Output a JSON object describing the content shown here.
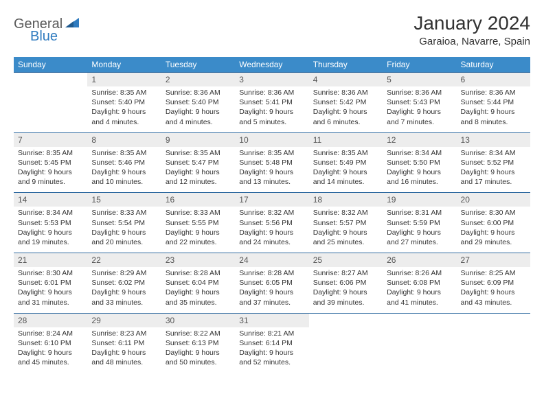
{
  "logo": {
    "part1": "General",
    "part2": "Blue"
  },
  "title": "January 2024",
  "location": "Garaioa, Navarre, Spain",
  "colors": {
    "header_bg": "#3b8bc9",
    "header_text": "#ffffff",
    "num_bg": "#ededed",
    "divider": "#2f6aa0",
    "text": "#333333",
    "logo_gray": "#5a5a5a",
    "logo_blue": "#2f7bbf"
  },
  "weekdays": [
    "Sunday",
    "Monday",
    "Tuesday",
    "Wednesday",
    "Thursday",
    "Friday",
    "Saturday"
  ],
  "weeks": [
    [
      null,
      {
        "n": "1",
        "sr": "8:35 AM",
        "ss": "5:40 PM",
        "dl": "9 hours and 4 minutes."
      },
      {
        "n": "2",
        "sr": "8:36 AM",
        "ss": "5:40 PM",
        "dl": "9 hours and 4 minutes."
      },
      {
        "n": "3",
        "sr": "8:36 AM",
        "ss": "5:41 PM",
        "dl": "9 hours and 5 minutes."
      },
      {
        "n": "4",
        "sr": "8:36 AM",
        "ss": "5:42 PM",
        "dl": "9 hours and 6 minutes."
      },
      {
        "n": "5",
        "sr": "8:36 AM",
        "ss": "5:43 PM",
        "dl": "9 hours and 7 minutes."
      },
      {
        "n": "6",
        "sr": "8:36 AM",
        "ss": "5:44 PM",
        "dl": "9 hours and 8 minutes."
      }
    ],
    [
      {
        "n": "7",
        "sr": "8:35 AM",
        "ss": "5:45 PM",
        "dl": "9 hours and 9 minutes."
      },
      {
        "n": "8",
        "sr": "8:35 AM",
        "ss": "5:46 PM",
        "dl": "9 hours and 10 minutes."
      },
      {
        "n": "9",
        "sr": "8:35 AM",
        "ss": "5:47 PM",
        "dl": "9 hours and 12 minutes."
      },
      {
        "n": "10",
        "sr": "8:35 AM",
        "ss": "5:48 PM",
        "dl": "9 hours and 13 minutes."
      },
      {
        "n": "11",
        "sr": "8:35 AM",
        "ss": "5:49 PM",
        "dl": "9 hours and 14 minutes."
      },
      {
        "n": "12",
        "sr": "8:34 AM",
        "ss": "5:50 PM",
        "dl": "9 hours and 16 minutes."
      },
      {
        "n": "13",
        "sr": "8:34 AM",
        "ss": "5:52 PM",
        "dl": "9 hours and 17 minutes."
      }
    ],
    [
      {
        "n": "14",
        "sr": "8:34 AM",
        "ss": "5:53 PM",
        "dl": "9 hours and 19 minutes."
      },
      {
        "n": "15",
        "sr": "8:33 AM",
        "ss": "5:54 PM",
        "dl": "9 hours and 20 minutes."
      },
      {
        "n": "16",
        "sr": "8:33 AM",
        "ss": "5:55 PM",
        "dl": "9 hours and 22 minutes."
      },
      {
        "n": "17",
        "sr": "8:32 AM",
        "ss": "5:56 PM",
        "dl": "9 hours and 24 minutes."
      },
      {
        "n": "18",
        "sr": "8:32 AM",
        "ss": "5:57 PM",
        "dl": "9 hours and 25 minutes."
      },
      {
        "n": "19",
        "sr": "8:31 AM",
        "ss": "5:59 PM",
        "dl": "9 hours and 27 minutes."
      },
      {
        "n": "20",
        "sr": "8:30 AM",
        "ss": "6:00 PM",
        "dl": "9 hours and 29 minutes."
      }
    ],
    [
      {
        "n": "21",
        "sr": "8:30 AM",
        "ss": "6:01 PM",
        "dl": "9 hours and 31 minutes."
      },
      {
        "n": "22",
        "sr": "8:29 AM",
        "ss": "6:02 PM",
        "dl": "9 hours and 33 minutes."
      },
      {
        "n": "23",
        "sr": "8:28 AM",
        "ss": "6:04 PM",
        "dl": "9 hours and 35 minutes."
      },
      {
        "n": "24",
        "sr": "8:28 AM",
        "ss": "6:05 PM",
        "dl": "9 hours and 37 minutes."
      },
      {
        "n": "25",
        "sr": "8:27 AM",
        "ss": "6:06 PM",
        "dl": "9 hours and 39 minutes."
      },
      {
        "n": "26",
        "sr": "8:26 AM",
        "ss": "6:08 PM",
        "dl": "9 hours and 41 minutes."
      },
      {
        "n": "27",
        "sr": "8:25 AM",
        "ss": "6:09 PM",
        "dl": "9 hours and 43 minutes."
      }
    ],
    [
      {
        "n": "28",
        "sr": "8:24 AM",
        "ss": "6:10 PM",
        "dl": "9 hours and 45 minutes."
      },
      {
        "n": "29",
        "sr": "8:23 AM",
        "ss": "6:11 PM",
        "dl": "9 hours and 48 minutes."
      },
      {
        "n": "30",
        "sr": "8:22 AM",
        "ss": "6:13 PM",
        "dl": "9 hours and 50 minutes."
      },
      {
        "n": "31",
        "sr": "8:21 AM",
        "ss": "6:14 PM",
        "dl": "9 hours and 52 minutes."
      },
      null,
      null,
      null
    ]
  ],
  "labels": {
    "sunrise": "Sunrise:",
    "sunset": "Sunset:",
    "daylight": "Daylight:"
  }
}
